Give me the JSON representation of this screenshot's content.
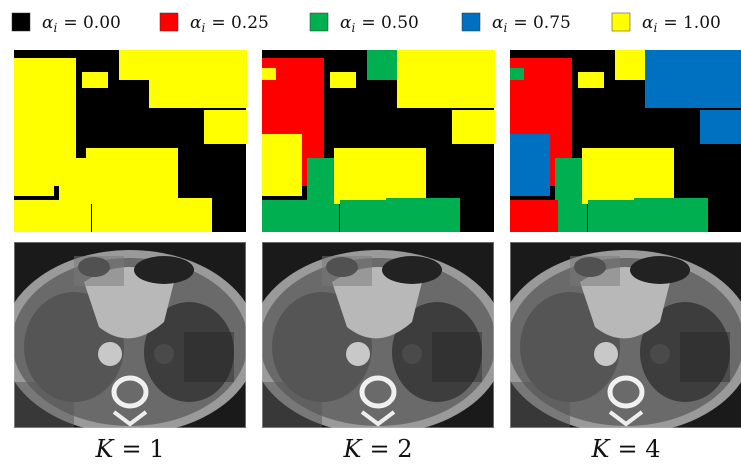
{
  "legend": [
    {
      "symbol": "α",
      "subscript": "i",
      "value": "= 0.00",
      "color": "#000000"
    },
    {
      "symbol": "α",
      "subscript": "i",
      "value": "= 0.25",
      "color": "#ff0000"
    },
    {
      "symbol": "α",
      "subscript": "i",
      "value": "= 0.50",
      "color": "#00b050"
    },
    {
      "symbol": "α",
      "subscript": "i",
      "value": "= 0.75",
      "color": "#0070c0"
    },
    {
      "symbol": "α",
      "subscript": "i",
      "value": "= 1.00",
      "color": "#ffff00"
    }
  ],
  "panels": [
    {
      "variable": "K",
      "value": "= 1"
    },
    {
      "variable": "K",
      "value": "= 2"
    },
    {
      "variable": "K",
      "value": "= 4"
    }
  ]
}
